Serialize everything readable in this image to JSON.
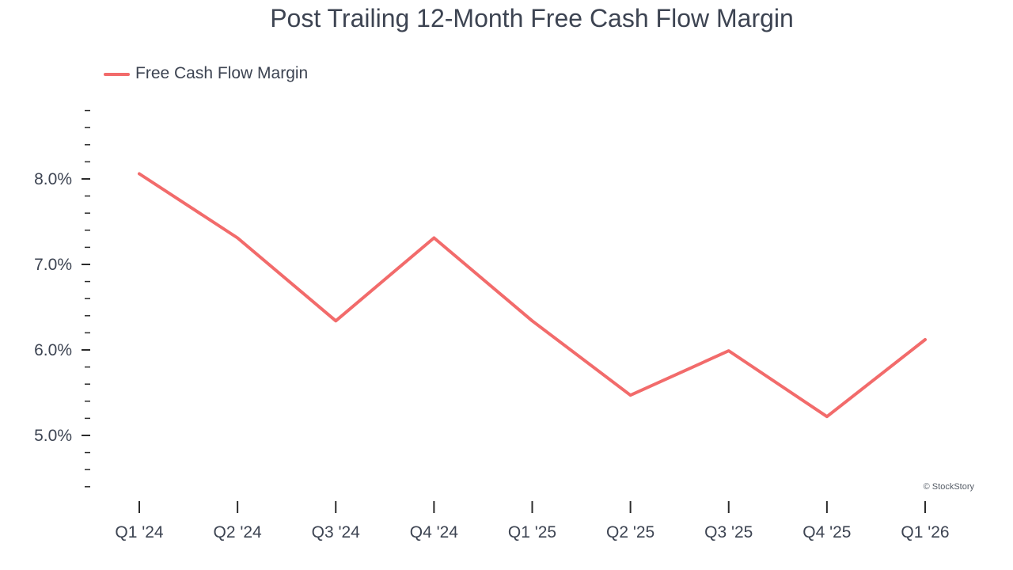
{
  "chart_data": {
    "type": "line",
    "title": "Post Trailing 12-Month Free Cash Flow Margin",
    "xlabel": "",
    "ylabel": "",
    "categories": [
      "Q1 '24",
      "Q2 '24",
      "Q3 '24",
      "Q4 '24",
      "Q1 '25",
      "Q2 '25",
      "Q3 '25",
      "Q4 '25",
      "Q1 '26"
    ],
    "series": [
      {
        "name": "Free Cash Flow Margin",
        "color": "#f26b6b",
        "values": [
          8.06,
          7.31,
          6.34,
          7.31,
          6.34,
          5.47,
          5.99,
          5.22,
          6.12
        ]
      }
    ],
    "ylim": [
      4.3,
      8.8
    ],
    "y_major_ticks": [
      5.0,
      6.0,
      7.0,
      8.0
    ],
    "y_major_tick_labels": [
      "5.0%",
      "6.0%",
      "7.0%",
      "8.0%"
    ],
    "y_minor_step": 0.2,
    "legend_position": "top-left",
    "grid": false
  },
  "watermark": "© StockStory"
}
